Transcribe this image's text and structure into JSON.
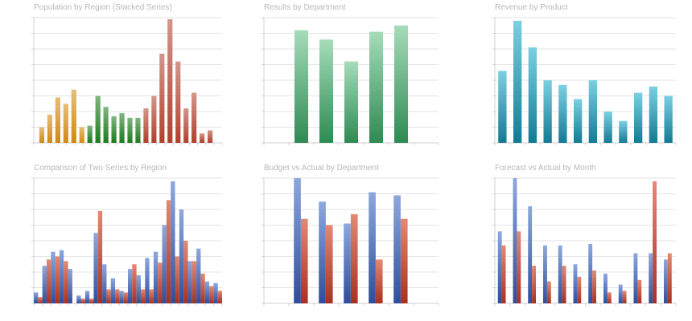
{
  "panels": [
    {
      "title": "Population by Region (Stacked Series)"
    },
    {
      "title": "Results by Department"
    },
    {
      "title": "Revenue by Product"
    },
    {
      "title": "Comparison of Two Series by Region"
    },
    {
      "title": "Budget vs Actual by Department"
    },
    {
      "title": "Forecast vs Actual by Month"
    }
  ],
  "chart_data": [
    {
      "type": "bar",
      "title": "Population by Region (Stacked Series)",
      "ylim": [
        0,
        8
      ],
      "grid": true,
      "groups": [
        {
          "color": "#d08a0c",
          "values": [
            1.0,
            1.8,
            2.9,
            2.5,
            3.4,
            1.0
          ]
        },
        {
          "color": "#1c7a1c",
          "values": [
            1.1,
            3.0,
            2.3,
            1.7,
            1.9,
            1.6,
            1.6
          ]
        },
        {
          "color": "#b0402c",
          "values": [
            2.2,
            3.0,
            5.7,
            7.9,
            5.2,
            2.2,
            3.2,
            0.6,
            0.8
          ]
        }
      ]
    },
    {
      "type": "bar",
      "title": "Results by Department",
      "ylim": [
        0,
        8
      ],
      "grid": true,
      "color_top": "#a6dcba",
      "color_bottom": "#2e8a52",
      "values": [
        7.2,
        6.6,
        5.2,
        7.1,
        7.5
      ]
    },
    {
      "type": "bar",
      "title": "Revenue by Product",
      "ylim": [
        0,
        8
      ],
      "grid": true,
      "color_top": "#7cd0e2",
      "color_bottom": "#137a94",
      "values": [
        4.6,
        7.8,
        6.1,
        4.0,
        3.7,
        2.8,
        4.0,
        2.0,
        1.4,
        3.2,
        3.6,
        3.0
      ]
    },
    {
      "type": "bar",
      "title": "Comparison of Two Series by Region",
      "ylim": [
        0,
        8
      ],
      "grid": true,
      "series": [
        {
          "color_top": "#8ea8de",
          "color_bottom": "#2c4e9c",
          "values": [
            0.7,
            2.4,
            3.3,
            3.4,
            2.2,
            0.5,
            0.8,
            4.5,
            2.5,
            1.6,
            0.8,
            2.2,
            1.8,
            2.9,
            3.3,
            5.0,
            7.8,
            6.0,
            2.7,
            3.5,
            1.4,
            1.3
          ]
        },
        {
          "color_top": "#e28a74",
          "color_bottom": "#a83020",
          "values": [
            0.4,
            2.8,
            3.0,
            2.7,
            0.0,
            0.3,
            0.3,
            5.9,
            0.9,
            0.9,
            0.7,
            2.5,
            0.9,
            0.9,
            2.6,
            6.6,
            3.0,
            4.0,
            2.7,
            1.9,
            1.1,
            0.8
          ]
        }
      ]
    },
    {
      "type": "bar",
      "title": "Budget vs Actual by Department",
      "ylim": [
        0,
        8
      ],
      "grid": true,
      "series": [
        {
          "color_top": "#8ea8de",
          "color_bottom": "#2c4e9c",
          "values": [
            8.0,
            6.5,
            5.1,
            7.1,
            6.9
          ]
        },
        {
          "color_top": "#e28a74",
          "color_bottom": "#a83020",
          "values": [
            5.4,
            5.0,
            5.7,
            2.8,
            5.4
          ]
        }
      ]
    },
    {
      "type": "bar",
      "title": "Forecast vs Actual by Month",
      "ylim": [
        0,
        8
      ],
      "grid": true,
      "series": [
        {
          "color_top": "#8ea8de",
          "color_bottom": "#2c4e9c",
          "values": [
            4.6,
            8.0,
            6.2,
            3.7,
            3.7,
            2.5,
            3.8,
            1.9,
            1.2,
            3.2,
            3.2,
            2.8
          ]
        },
        {
          "color_top": "#e28a74",
          "color_bottom": "#a83020",
          "values": [
            3.7,
            4.6,
            2.4,
            1.4,
            2.4,
            1.7,
            2.1,
            0.7,
            0.8,
            1.5,
            7.8,
            3.2
          ]
        }
      ]
    }
  ]
}
